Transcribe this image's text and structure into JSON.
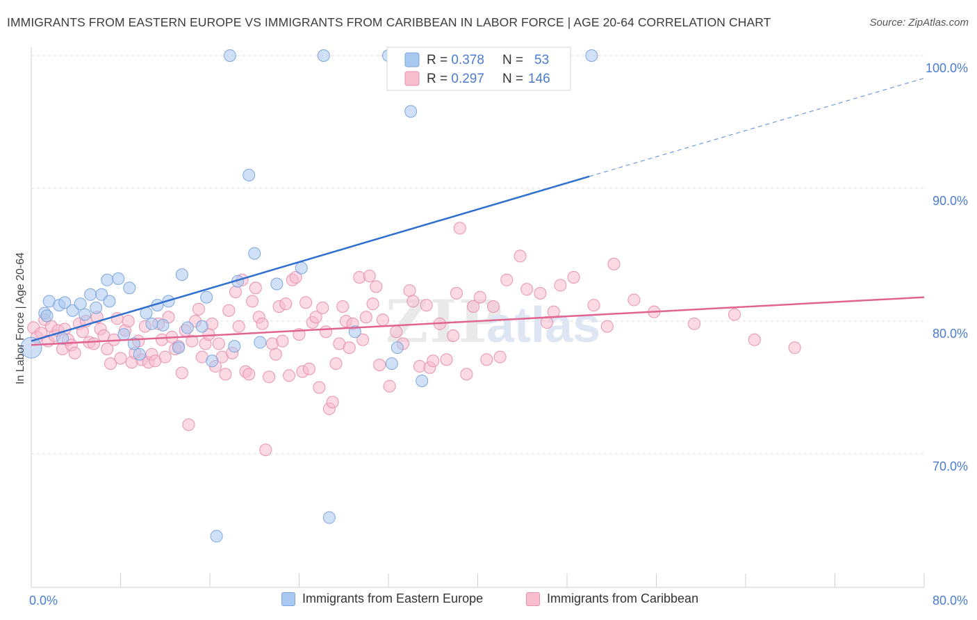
{
  "header": {
    "title": "IMMIGRANTS FROM EASTERN EUROPE VS IMMIGRANTS FROM CARIBBEAN IN LABOR FORCE | AGE 20-64 CORRELATION CHART",
    "source": "Source: ZipAtlas.com"
  },
  "colors": {
    "blue_fill": "#a9c8f0",
    "blue_stroke": "#7ca6de",
    "blue_line": "#2f6fd0",
    "pink_fill": "#f7bccd",
    "pink_stroke": "#e892ae",
    "pink_line": "#e0648f",
    "axis_text": "#4a7ccf",
    "grid": "#dcdcdc"
  },
  "watermark": {
    "zip": "ZIP",
    "atlas": "atlas"
  },
  "legend_stats": [
    {
      "r_label": "R = ",
      "r_value": "0.378",
      "n_label": "N = ",
      "n_value": "53",
      "color": "blue"
    },
    {
      "r_label": "R = ",
      "r_value": "0.297",
      "n_label": "N = ",
      "n_value": "146",
      "color": "pink"
    }
  ],
  "legend_bottom": [
    {
      "label": "Immigrants from Eastern Europe",
      "color": "blue"
    },
    {
      "label": "Immigrants from Caribbean",
      "color": "pink"
    }
  ],
  "chart_data": {
    "type": "scatter",
    "title": "IMMIGRANTS FROM EASTERN EUROPE VS IMMIGRANTS FROM CARIBBEAN IN LABOR FORCE | AGE 20-64 CORRELATION CHART",
    "xlabel": "",
    "ylabel": "In Labor Force | Age 20-64",
    "xlim": [
      0,
      80
    ],
    "ylim": [
      60,
      102
    ],
    "x_tick_labels": [
      {
        "value": 0,
        "label": "0.0%"
      },
      {
        "value": 80,
        "label": "80.0%"
      }
    ],
    "y_tick_labels": [
      {
        "value": 70,
        "label": "70.0%"
      },
      {
        "value": 80,
        "label": "80.0%"
      },
      {
        "value": 90,
        "label": "90.0%"
      },
      {
        "value": 100,
        "label": "100.0%"
      }
    ],
    "grid": true,
    "series": [
      {
        "name": "Immigrants from Eastern Europe",
        "color": "blue",
        "trend": {
          "x": [
            0,
            50
          ],
          "y": [
            78.5,
            90.9
          ],
          "dashed_to": [
            80,
            98.3
          ]
        },
        "points": [
          [
            0,
            78.0
          ],
          [
            1.2,
            80.6
          ],
          [
            1.4,
            80.4
          ],
          [
            1.6,
            81.5
          ],
          [
            2.5,
            81.2
          ],
          [
            2.8,
            78.7
          ],
          [
            3.0,
            81.4
          ],
          [
            3.7,
            80.8
          ],
          [
            4.4,
            81.3
          ],
          [
            4.8,
            80.5
          ],
          [
            5.3,
            82.0
          ],
          [
            5.8,
            81.0
          ],
          [
            6.3,
            82.0
          ],
          [
            6.8,
            83.1
          ],
          [
            7.0,
            81.5
          ],
          [
            7.8,
            83.2
          ],
          [
            8.3,
            79.0
          ],
          [
            8.8,
            82.5
          ],
          [
            9.2,
            78.3
          ],
          [
            9.7,
            77.5
          ],
          [
            10.3,
            80.6
          ],
          [
            10.8,
            79.8
          ],
          [
            11.3,
            81.2
          ],
          [
            11.8,
            79.7
          ],
          [
            12.3,
            81.5
          ],
          [
            13.2,
            78.0
          ],
          [
            13.5,
            83.5
          ],
          [
            14.0,
            79.5
          ],
          [
            15.3,
            79.6
          ],
          [
            15.7,
            81.8
          ],
          [
            16.2,
            77.0
          ],
          [
            16.6,
            63.8
          ],
          [
            17.8,
            100.0
          ],
          [
            18.2,
            78.1
          ],
          [
            18.5,
            83.0
          ],
          [
            19.5,
            91.0
          ],
          [
            20.0,
            85.1
          ],
          [
            20.5,
            78.4
          ],
          [
            22.0,
            82.8
          ],
          [
            24.2,
            84.0
          ],
          [
            26.2,
            100.0
          ],
          [
            26.7,
            65.2
          ],
          [
            29.0,
            79.2
          ],
          [
            32.0,
            100.0
          ],
          [
            32.3,
            76.8
          ],
          [
            32.8,
            78.0
          ],
          [
            34.0,
            95.8
          ],
          [
            35.0,
            75.5
          ],
          [
            50.2,
            100.0
          ]
        ]
      },
      {
        "name": "Immigrants from Caribbean",
        "color": "pink",
        "trend": {
          "x": [
            0,
            80
          ],
          "y": [
            78.2,
            81.8
          ]
        },
        "points": [
          [
            0.2,
            79.5
          ],
          [
            0.5,
            78.8
          ],
          [
            0.9,
            79.1
          ],
          [
            1.2,
            80.1
          ],
          [
            1.5,
            78.5
          ],
          [
            1.8,
            79.6
          ],
          [
            2.1,
            78.9
          ],
          [
            2.4,
            79.3
          ],
          [
            2.8,
            77.9
          ],
          [
            3.0,
            79.4
          ],
          [
            3.3,
            78.6
          ],
          [
            3.6,
            78.2
          ],
          [
            3.9,
            77.6
          ],
          [
            4.3,
            79.8
          ],
          [
            4.6,
            79.2
          ],
          [
            4.9,
            80.0
          ],
          [
            5.2,
            78.4
          ],
          [
            5.6,
            78.3
          ],
          [
            5.9,
            80.3
          ],
          [
            6.2,
            79.4
          ],
          [
            6.5,
            78.9
          ],
          [
            6.8,
            77.9
          ],
          [
            7.1,
            76.8
          ],
          [
            7.4,
            78.6
          ],
          [
            7.7,
            80.2
          ],
          [
            8.0,
            77.2
          ],
          [
            8.4,
            79.3
          ],
          [
            8.7,
            80.0
          ],
          [
            9.0,
            76.9
          ],
          [
            9.3,
            77.6
          ],
          [
            9.6,
            78.5
          ],
          [
            9.9,
            77.1
          ],
          [
            10.2,
            79.6
          ],
          [
            10.5,
            76.9
          ],
          [
            10.8,
            77.5
          ],
          [
            11.1,
            77.0
          ],
          [
            11.4,
            79.8
          ],
          [
            11.7,
            78.6
          ],
          [
            12.0,
            77.3
          ],
          [
            12.3,
            80.3
          ],
          [
            12.6,
            78.8
          ],
          [
            12.9,
            77.9
          ],
          [
            13.2,
            78.1
          ],
          [
            13.5,
            76.1
          ],
          [
            13.8,
            79.3
          ],
          [
            14.1,
            72.2
          ],
          [
            14.4,
            78.5
          ],
          [
            14.7,
            80.0
          ],
          [
            15.0,
            80.9
          ],
          [
            15.3,
            77.3
          ],
          [
            15.6,
            78.3
          ],
          [
            15.9,
            79.0
          ],
          [
            16.2,
            79.8
          ],
          [
            16.5,
            76.6
          ],
          [
            16.8,
            78.3
          ],
          [
            17.1,
            77.3
          ],
          [
            17.4,
            76.0
          ],
          [
            17.7,
            80.8
          ],
          [
            18.0,
            77.6
          ],
          [
            18.3,
            82.2
          ],
          [
            18.6,
            79.6
          ],
          [
            18.9,
            83.1
          ],
          [
            19.2,
            76.2
          ],
          [
            19.5,
            76.0
          ],
          [
            19.8,
            81.5
          ],
          [
            20.1,
            82.5
          ],
          [
            20.4,
            80.3
          ],
          [
            20.7,
            79.8
          ],
          [
            21.0,
            70.3
          ],
          [
            21.3,
            75.8
          ],
          [
            21.6,
            78.3
          ],
          [
            21.9,
            77.5
          ],
          [
            22.2,
            81.1
          ],
          [
            22.5,
            78.5
          ],
          [
            22.8,
            81.3
          ],
          [
            23.1,
            75.9
          ],
          [
            23.4,
            83.1
          ],
          [
            23.7,
            83.3
          ],
          [
            24.0,
            79.0
          ],
          [
            24.3,
            76.2
          ],
          [
            24.6,
            81.4
          ],
          [
            24.9,
            76.4
          ],
          [
            25.2,
            79.9
          ],
          [
            25.5,
            80.3
          ],
          [
            25.8,
            75.0
          ],
          [
            26.1,
            81.0
          ],
          [
            26.4,
            79.2
          ],
          [
            26.7,
            73.4
          ],
          [
            27.0,
            73.9
          ],
          [
            27.3,
            76.8
          ],
          [
            27.6,
            78.3
          ],
          [
            27.9,
            81.1
          ],
          [
            28.2,
            80.0
          ],
          [
            28.5,
            78.0
          ],
          [
            28.8,
            79.8
          ],
          [
            29.4,
            83.3
          ],
          [
            29.7,
            78.6
          ],
          [
            30.0,
            80.3
          ],
          [
            30.3,
            83.4
          ],
          [
            30.6,
            81.3
          ],
          [
            30.9,
            82.6
          ],
          [
            31.2,
            76.7
          ],
          [
            31.5,
            80.1
          ],
          [
            32.1,
            75.1
          ],
          [
            32.7,
            79.2
          ],
          [
            33.3,
            78.3
          ],
          [
            33.9,
            82.3
          ],
          [
            34.2,
            81.5
          ],
          [
            34.8,
            76.6
          ],
          [
            35.4,
            81.2
          ],
          [
            35.7,
            76.5
          ],
          [
            36.0,
            77.0
          ],
          [
            36.6,
            79.8
          ],
          [
            37.2,
            77.1
          ],
          [
            37.8,
            78.9
          ],
          [
            38.1,
            82.1
          ],
          [
            38.4,
            87.0
          ],
          [
            39.0,
            76.0
          ],
          [
            39.6,
            81.1
          ],
          [
            40.2,
            81.8
          ],
          [
            40.8,
            77.1
          ],
          [
            41.4,
            81.1
          ],
          [
            42.0,
            77.3
          ],
          [
            42.6,
            83.1
          ],
          [
            43.8,
            84.9
          ],
          [
            44.4,
            82.4
          ],
          [
            45.6,
            82.1
          ],
          [
            46.2,
            79.9
          ],
          [
            46.8,
            80.7
          ],
          [
            47.4,
            82.7
          ],
          [
            48.6,
            83.3
          ],
          [
            50.4,
            81.2
          ],
          [
            51.6,
            79.6
          ],
          [
            52.2,
            84.3
          ],
          [
            54.0,
            81.6
          ],
          [
            55.8,
            80.7
          ],
          [
            59.4,
            79.8
          ],
          [
            63.0,
            80.5
          ],
          [
            64.8,
            78.6
          ],
          [
            68.4,
            78.0
          ]
        ]
      }
    ]
  }
}
